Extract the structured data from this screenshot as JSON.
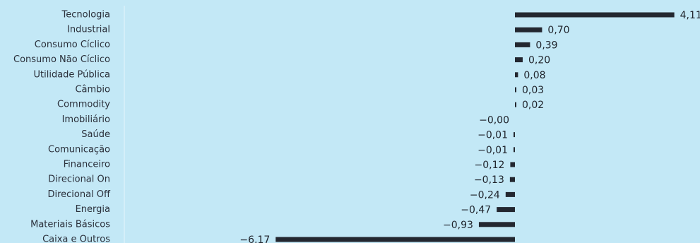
{
  "chart_data": {
    "type": "bar",
    "orientation": "horizontal",
    "categories": [
      "Tecnologia",
      "Industrial",
      "Consumo Cíclico",
      "Consumo Não Cíclico",
      "Utilidade Pública",
      "Câmbio",
      "Commodity",
      "Imobiliário",
      "Saúde",
      "Comunicação",
      "Financeiro",
      "Direcional On",
      "Direcional Off",
      "Energia",
      "Materiais Básicos",
      "Caixa e Outros"
    ],
    "values": [
      4.11,
      0.7,
      0.39,
      0.2,
      0.08,
      0.03,
      0.02,
      -0.0,
      -0.01,
      -0.01,
      -0.12,
      -0.13,
      -0.24,
      -0.47,
      -0.93,
      -6.17
    ],
    "value_labels": [
      "4,11",
      "0,70",
      "0,39",
      "0,20",
      "0,08",
      "0,03",
      "0,02",
      "−0,00",
      "−0,01",
      "−0,01",
      "−0,12",
      "−0,13",
      "−0,24",
      "−0,47",
      "−0,93",
      "−6,17"
    ],
    "title": "",
    "xlabel": "",
    "ylabel": "",
    "xlim": [
      -6.17,
      4.11
    ],
    "grid": false,
    "legend": "none",
    "colors": {
      "background": "#c3e8f6",
      "bar": "#232730",
      "divider": "#d4eef9"
    }
  }
}
